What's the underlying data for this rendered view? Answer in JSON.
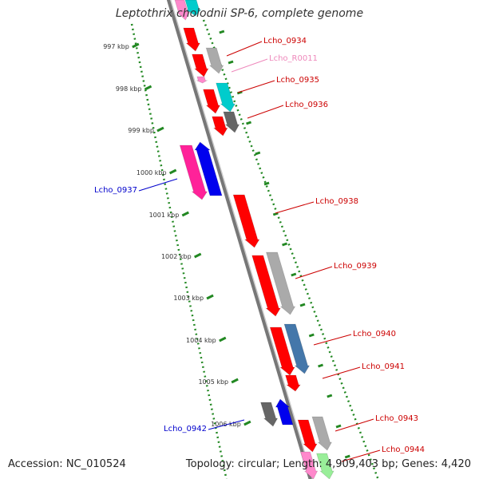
{
  "title": "Leptothrix cholodnii SP-6, complete genome",
  "footer": {
    "accession": "Accession: NC_010524",
    "summary": "Topology: circular; Length: 4,909,403 bp; Genes: 4,420"
  },
  "scale": [
    "997 kbp",
    "998 kbp",
    "999 kbp",
    "1000 kbp",
    "1001 kbp",
    "1002 kbp",
    "1003 kbp",
    "1004 kbp",
    "1005 kbp",
    "1006 kbp"
  ],
  "labels": [
    {
      "id": "lcho0934",
      "text": "Lcho_0934",
      "color": "#cc0000"
    },
    {
      "id": "lchor0011",
      "text": "Lcho_R0011",
      "color": "#ee88bb"
    },
    {
      "id": "lcho0935",
      "text": "Lcho_0935",
      "color": "#cc0000"
    },
    {
      "id": "lcho0936",
      "text": "Lcho_0936",
      "color": "#cc0000"
    },
    {
      "id": "lcho0937",
      "text": "Lcho_0937",
      "color": "#0000cc"
    },
    {
      "id": "lcho0938",
      "text": "Lcho_0938",
      "color": "#cc0000"
    },
    {
      "id": "lcho0939",
      "text": "Lcho_0939",
      "color": "#cc0000"
    },
    {
      "id": "lcho0940",
      "text": "Lcho_0940",
      "color": "#cc0000"
    },
    {
      "id": "lcho0941",
      "text": "Lcho_0941",
      "color": "#cc0000"
    },
    {
      "id": "lcho0942",
      "text": "Lcho_0942",
      "color": "#0000cc"
    },
    {
      "id": "lcho0943",
      "text": "Lcho_0943",
      "color": "#cc0000"
    },
    {
      "id": "lcho0944",
      "text": "Lcho_0944",
      "color": "#cc0000"
    }
  ],
  "colors": {
    "red": "#ff0000",
    "gray": "#aaaaaa",
    "darkgray": "#666666",
    "cyan": "#00cccc",
    "magenta": "#ff2299",
    "blue": "#0000ee",
    "steelblue": "#4477aa",
    "pink": "#ff88cc",
    "lightgreen": "#99ee99",
    "backbone": "#777777",
    "tick": "#228822"
  }
}
